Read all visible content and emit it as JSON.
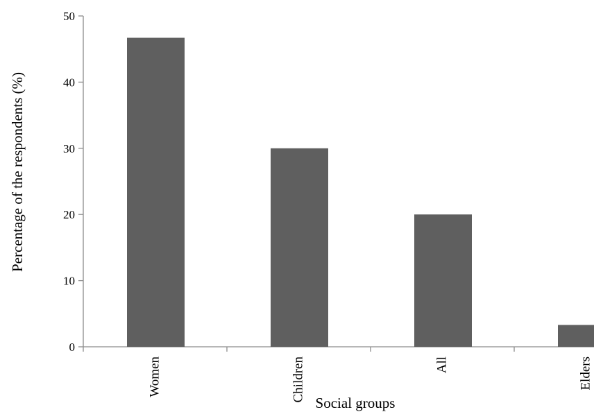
{
  "chart_data": {
    "type": "bar",
    "categories": [
      "Women",
      "Children",
      "All",
      "Elders"
    ],
    "values": [
      46.7,
      30,
      20,
      3.3
    ],
    "title": "",
    "xlabel": "Social groups",
    "ylabel": "Percentage of the respondents (%)",
    "ylim": [
      0,
      50
    ],
    "yticks": [
      "0",
      "10",
      "20",
      "30",
      "40",
      "50"
    ],
    "grid": false,
    "legend": "none",
    "colors": {
      "bar": "#5f5f5f",
      "axis": "#8c8c8c"
    }
  }
}
